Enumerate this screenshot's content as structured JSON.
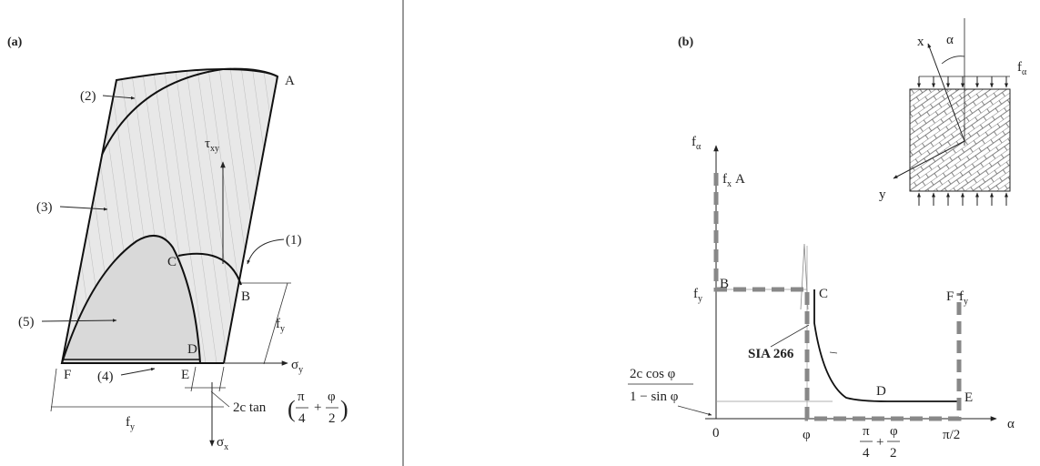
{
  "panel_a": {
    "title": "(a)",
    "point_labels": {
      "A": "A",
      "B": "B",
      "C": "C",
      "D": "D",
      "E": "E",
      "F": "F"
    },
    "region_labels": {
      "r1": "(1)",
      "r2": "(2)",
      "r3": "(3)",
      "r4": "(4)",
      "r5": "(5)"
    },
    "tau": "τ",
    "tau_sub": "xy",
    "sigma_y": "σ",
    "sigma_y_sub": "y",
    "sigma_x": "σ",
    "sigma_x_sub": "x",
    "fy_right": "f",
    "fy_right_sub": "y",
    "fy_bottom": "f",
    "fy_bottom_sub": "y",
    "ctan_prefix": "2c tan",
    "ctan_pi": "π",
    "ctan_4": "4",
    "ctan_plus": "+",
    "ctan_phi": "φ",
    "ctan_2": "2"
  },
  "panel_b": {
    "title": "(b)",
    "point_labels": {
      "A": "A",
      "B": "B",
      "C": "C",
      "D": "D",
      "E": "E",
      "F": "F"
    },
    "y_axis": "f",
    "y_axis_sub": "α",
    "fx": "f",
    "fx_sub": "x",
    "fy_left": "f",
    "fy_left_sub": "y",
    "fy_right": "f",
    "fy_right_sub": "y",
    "sia": "SIA 266",
    "frac_num": "2c cos φ",
    "frac_den": "1 − sin φ",
    "x_axis": "α",
    "tick_0": "0",
    "tick_phi": "φ",
    "tick_pi": "π",
    "tick_4": "4",
    "tick_plus": "+",
    "tick_phi2": "φ",
    "tick_2": "2",
    "tick_pi2": "π/2",
    "inset_x": "x",
    "inset_y": "y",
    "inset_alpha": "α",
    "inset_f": "f",
    "inset_f_sub": "α"
  }
}
